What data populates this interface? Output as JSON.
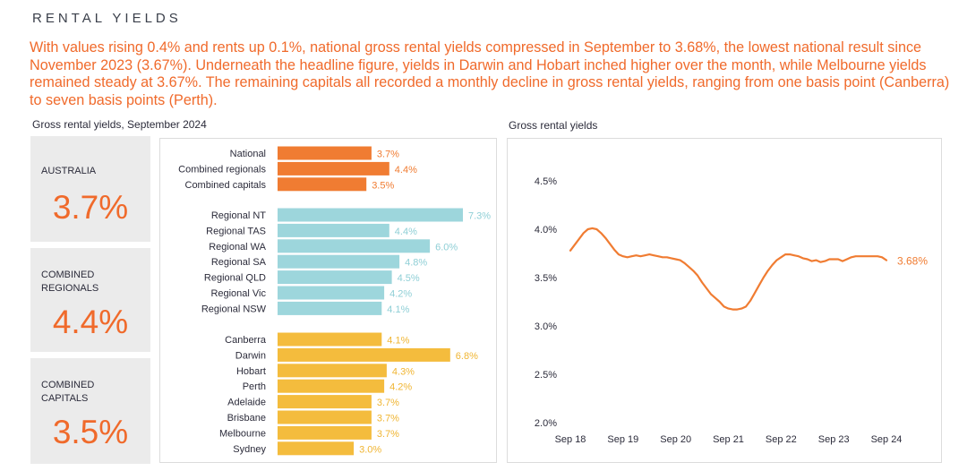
{
  "header": {
    "section_title": "RENTAL YIELDS",
    "intro": "With values rising 0.4% and rents up 0.1%, national gross rental yields compressed in September to 3.68%, the lowest national result since November 2023 (3.67%). Underneath the headline figure, yields in Darwin and Hobart inched higher over the month, while Melbourne yields remained steady at 3.67%. The remaining capitals all recorded a monthly decline in gross rental yields, ranging from one basis point (Canberra) to seven basis points (Perth).",
    "left_subtitle": "Gross rental yields, September 2024",
    "right_subtitle": "Gross rental yields"
  },
  "stat_cards": [
    {
      "label": "AUSTRALIA",
      "value": "3.7%"
    },
    {
      "label": "COMBINED REGIONALS",
      "value": "4.4%"
    },
    {
      "label": "COMBINED CAPITALS",
      "value": "3.5%"
    }
  ],
  "colors": {
    "accent": "#f06a2b",
    "national_group": "#f07c32",
    "regional_group": "#9dd6dc",
    "capital_group": "#f4bc3d",
    "card_bg": "#ebebeb"
  },
  "chart_data": [
    {
      "type": "bar",
      "orientation": "horizontal",
      "groups": [
        {
          "color": "#f07c32",
          "label_color": "#f07c32",
          "categories": [
            "National",
            "Combined regionals",
            "Combined capitals"
          ],
          "values": [
            3.7,
            4.4,
            3.5
          ],
          "labels": [
            "3.7%",
            "4.4%",
            "3.5%"
          ]
        },
        {
          "color": "#9dd6dc",
          "label_color": "#8fcfd6",
          "categories": [
            "Regional NT",
            "Regional TAS",
            "Regional WA",
            "Regional SA",
            "Regional QLD",
            "Regional Vic",
            "Regional NSW"
          ],
          "values": [
            7.3,
            4.4,
            6.0,
            4.8,
            4.5,
            4.2,
            4.1
          ],
          "labels": [
            "7.3%",
            "4.4%",
            "6.0%",
            "4.8%",
            "4.5%",
            "4.2%",
            "4.1%"
          ]
        },
        {
          "color": "#f4bc3d",
          "label_color": "#f0b532",
          "categories": [
            "Canberra",
            "Darwin",
            "Hobart",
            "Perth",
            "Adelaide",
            "Brisbane",
            "Melbourne",
            "Sydney"
          ],
          "values": [
            4.1,
            6.8,
            4.3,
            4.2,
            3.7,
            3.7,
            3.7,
            3.0
          ],
          "labels": [
            "4.1%",
            "6.8%",
            "4.3%",
            "4.2%",
            "3.7%",
            "3.7%",
            "3.7%",
            "3.0%"
          ]
        }
      ],
      "xlim": [
        0,
        7.3
      ]
    },
    {
      "type": "line",
      "color": "#f07c32",
      "x_ticks": [
        "Sep 18",
        "Sep 19",
        "Sep 20",
        "Sep 21",
        "Sep 22",
        "Sep 23",
        "Sep 24"
      ],
      "y_ticks": [
        "4.5%",
        "4.0%",
        "3.5%",
        "3.0%",
        "2.5%",
        "2.0%"
      ],
      "ylim": [
        2.0,
        4.5
      ],
      "end_label": "3.68%",
      "series": [
        {
          "x": [
            "Sep 18",
            "Oct 18",
            "Nov 18",
            "Dec 18",
            "Jan 19",
            "Feb 19",
            "Mar 19",
            "Apr 19",
            "May 19",
            "Jun 19",
            "Jul 19",
            "Aug 19",
            "Sep 19",
            "Oct 19",
            "Nov 19",
            "Dec 19",
            "Jan 20",
            "Feb 20",
            "Mar 20",
            "Apr 20",
            "May 20",
            "Jun 20",
            "Jul 20",
            "Aug 20",
            "Sep 20",
            "Oct 20",
            "Nov 20",
            "Dec 20",
            "Jan 21",
            "Feb 21",
            "Mar 21",
            "Apr 21",
            "May 21",
            "Jun 21",
            "Jul 21",
            "Aug 21",
            "Sep 21",
            "Oct 21",
            "Nov 21",
            "Dec 21",
            "Jan 22",
            "Feb 22",
            "Mar 22",
            "Apr 22",
            "May 22",
            "Jun 22",
            "Jul 22",
            "Aug 22",
            "Sep 22",
            "Oct 22",
            "Nov 22",
            "Dec 22",
            "Jan 23",
            "Feb 23",
            "Mar 23",
            "Apr 23",
            "May 23",
            "Jun 23",
            "Jul 23",
            "Aug 23",
            "Sep 23",
            "Oct 23",
            "Nov 23",
            "Dec 23",
            "Jan 24",
            "Feb 24",
            "Mar 24",
            "Apr 24",
            "May 24",
            "Jun 24",
            "Jul 24",
            "Aug 24",
            "Sep 24"
          ],
          "y": [
            3.78,
            3.84,
            3.9,
            3.96,
            4.0,
            4.01,
            4.0,
            3.96,
            3.91,
            3.85,
            3.79,
            3.74,
            3.72,
            3.71,
            3.72,
            3.73,
            3.72,
            3.73,
            3.74,
            3.73,
            3.72,
            3.71,
            3.71,
            3.7,
            3.69,
            3.68,
            3.65,
            3.61,
            3.57,
            3.52,
            3.45,
            3.39,
            3.33,
            3.29,
            3.25,
            3.2,
            3.18,
            3.17,
            3.17,
            3.18,
            3.2,
            3.26,
            3.34,
            3.42,
            3.5,
            3.57,
            3.63,
            3.68,
            3.71,
            3.74,
            3.74,
            3.73,
            3.72,
            3.7,
            3.69,
            3.67,
            3.68,
            3.66,
            3.67,
            3.69,
            3.69,
            3.69,
            3.67,
            3.69,
            3.71,
            3.72,
            3.72,
            3.72,
            3.72,
            3.72,
            3.72,
            3.71,
            3.68
          ]
        }
      ]
    }
  ]
}
